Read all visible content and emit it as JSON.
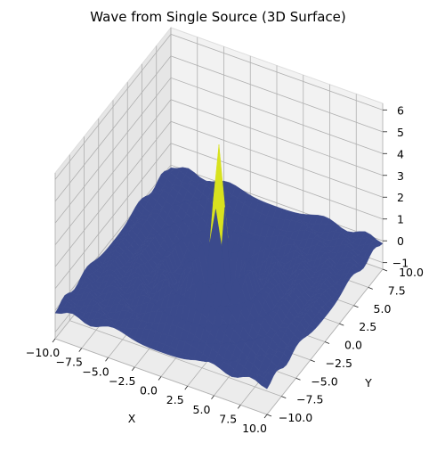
{
  "chart_data": {
    "type": "surface3d",
    "title": "Wave from Single Source (3D Surface)",
    "xlabel": "X",
    "ylabel": "Y",
    "zlabel": "",
    "x_ticks": [
      "−10.0",
      "−7.5",
      "−5.0",
      "−2.5",
      "0.0",
      "2.5",
      "5.0",
      "7.5",
      "10.0"
    ],
    "y_ticks": [
      "−10.0",
      "−7.5",
      "−5.0",
      "−2.5",
      "0.0",
      "2.5",
      "5.0",
      "7.5",
      "10.0"
    ],
    "z_ticks": [
      "−1",
      "0",
      "1",
      "2",
      "3",
      "4",
      "5",
      "6"
    ],
    "x_range": [
      -10,
      10
    ],
    "y_range": [
      -10,
      10
    ],
    "z_range": [
      -1.3,
      6.3
    ],
    "grid": true,
    "colormap": "viridis",
    "surface": "z = sin(r)/r style wave centered at (0, 0), peak ≈ 6",
    "colors": {
      "low": "#3b4a8c",
      "mid": "#3e7d8e",
      "high": "#d8e21e",
      "pane": "#f2f2f2",
      "pane_side": "#e6e6e6"
    }
  }
}
